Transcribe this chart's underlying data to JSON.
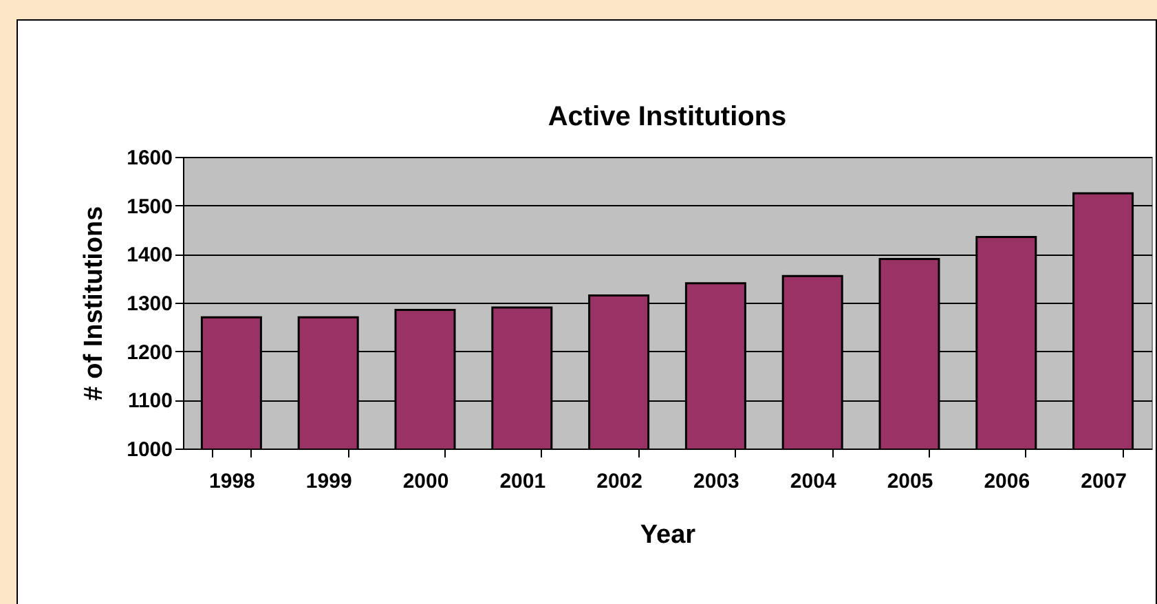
{
  "chart_data": {
    "type": "bar",
    "title": "Active Institutions",
    "xlabel": "Year",
    "ylabel": "# of Institutions",
    "categories": [
      "1998",
      "1999",
      "2000",
      "2001",
      "2002",
      "2003",
      "2004",
      "2005",
      "2006",
      "2007"
    ],
    "values": [
      1270,
      1270,
      1285,
      1290,
      1315,
      1340,
      1355,
      1390,
      1435,
      1525
    ],
    "color": "#993366",
    "ylim": [
      1000,
      1600
    ],
    "yticks": [
      1000,
      1100,
      1200,
      1300,
      1400,
      1500,
      1600
    ],
    "grid": "y"
  }
}
